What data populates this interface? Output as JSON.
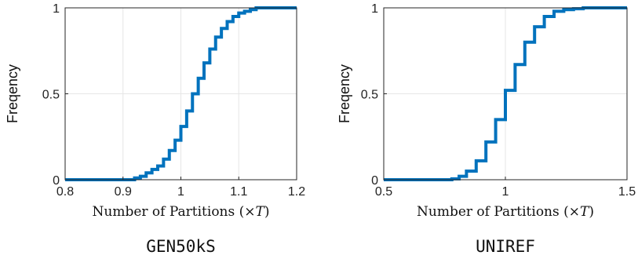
{
  "colors": {
    "series": "#0072bd",
    "grid": "#e6e6e6",
    "axis": "#262626"
  },
  "chart_data": [
    {
      "type": "line",
      "caption": "GEN50kS",
      "xlabel_text": "Number of Partitions (",
      "xlabel_symbol": "×",
      "xlabel_var": "T",
      "xlabel_close": ")",
      "ylabel": "Freqency",
      "xlim": [
        0.8,
        1.2
      ],
      "ylim": [
        0,
        1
      ],
      "xticks": [
        0.8,
        0.9,
        1.0,
        1.1,
        1.2
      ],
      "xtick_labels": [
        "0.8",
        "0.9",
        "1",
        "1.1",
        "1.2"
      ],
      "yticks": [
        0,
        0.5,
        1
      ],
      "ytick_labels": [
        "0",
        "0.5",
        "1"
      ],
      "grid": true,
      "series": [
        {
          "style": "stairs",
          "x": [
            0.8,
            0.92,
            0.93,
            0.94,
            0.95,
            0.96,
            0.97,
            0.98,
            0.99,
            1.0,
            1.01,
            1.02,
            1.03,
            1.04,
            1.05,
            1.06,
            1.07,
            1.08,
            1.09,
            1.1,
            1.11,
            1.12,
            1.13,
            1.2
          ],
          "y": [
            0.0,
            0.01,
            0.02,
            0.04,
            0.06,
            0.08,
            0.12,
            0.17,
            0.23,
            0.31,
            0.4,
            0.5,
            0.59,
            0.68,
            0.76,
            0.83,
            0.88,
            0.92,
            0.95,
            0.97,
            0.98,
            0.99,
            1.0,
            1.0
          ]
        }
      ]
    },
    {
      "type": "line",
      "caption": "UNIREF",
      "xlabel_text": "Number of Partitions (",
      "xlabel_symbol": "×",
      "xlabel_var": "T",
      "xlabel_close": ")",
      "ylabel": "Freqency",
      "xlim": [
        0.5,
        1.5
      ],
      "ylim": [
        0,
        1
      ],
      "xticks": [
        0.5,
        1.0,
        1.5
      ],
      "xtick_labels": [
        "0.5",
        "1",
        "1.5"
      ],
      "yticks": [
        0,
        0.5,
        1
      ],
      "ytick_labels": [
        "0",
        "0.5",
        "1"
      ],
      "grid": true,
      "series": [
        {
          "style": "stairs",
          "x": [
            0.5,
            0.78,
            0.81,
            0.84,
            0.88,
            0.92,
            0.96,
            1.0,
            1.04,
            1.08,
            1.12,
            1.16,
            1.2,
            1.24,
            1.28,
            1.32,
            1.5
          ],
          "y": [
            0.0,
            0.005,
            0.02,
            0.05,
            0.11,
            0.22,
            0.35,
            0.52,
            0.67,
            0.8,
            0.89,
            0.95,
            0.98,
            0.99,
            0.995,
            1.0,
            1.0
          ]
        }
      ]
    }
  ]
}
